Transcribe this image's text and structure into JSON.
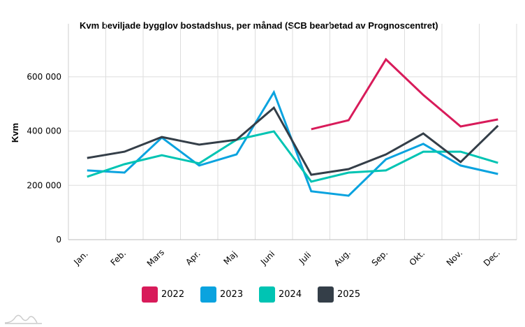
{
  "chart_data": {
    "type": "line",
    "title": "Kvm beviljade bygglov bostadshus, per månad (SCB bearbetad av Prognoscentret)",
    "xlabel": "",
    "ylabel": "Kvm",
    "categories": [
      "Jan.",
      "Feb.",
      "Mars",
      "Apr.",
      "Maj",
      "Juni",
      "Juli",
      "Aug.",
      "Sep.",
      "Okt.",
      "Nov.",
      "Dec."
    ],
    "ylim": [
      0,
      720000
    ],
    "yticks": [
      0,
      200000,
      400000,
      600000
    ],
    "ytick_labels": [
      "0",
      "200 000",
      "400 000",
      "600 000"
    ],
    "grid": true,
    "legend_position": "bottom",
    "series": [
      {
        "name": "2022",
        "color": "#d81b5a",
        "values": [
          null,
          null,
          null,
          null,
          null,
          null,
          407000,
          440000,
          664000,
          533000,
          417000,
          443000
        ]
      },
      {
        "name": "2023",
        "color": "#0aa3df",
        "values": [
          255000,
          247000,
          376000,
          273000,
          314000,
          543000,
          178000,
          162000,
          296000,
          353000,
          273000,
          242000
        ]
      },
      {
        "name": "2024",
        "color": "#00c4b3",
        "values": [
          232000,
          278000,
          311000,
          281000,
          368000,
          399000,
          214000,
          247000,
          255000,
          324000,
          324000,
          283000
        ]
      },
      {
        "name": "2025",
        "color": "#343e48",
        "values": [
          301000,
          324000,
          378000,
          350000,
          368000,
          486000,
          239000,
          260000,
          314000,
          391000,
          286000,
          420000
        ]
      }
    ]
  }
}
